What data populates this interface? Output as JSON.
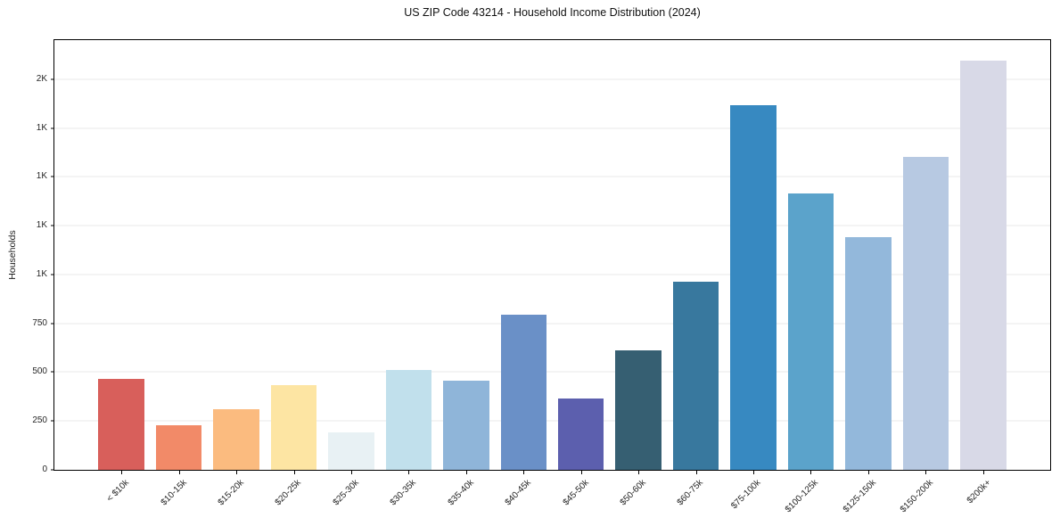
{
  "header": {
    "title": "US ZIP Code 43214 - Household Income Distribution (2024)"
  },
  "colors": {
    "background": "#ffffff",
    "axis_frame": "#000000",
    "gridline": "#e9e9e9",
    "tick_text": "#262626",
    "title_text": "#111111"
  },
  "chart_data": {
    "type": "bar",
    "title": "US ZIP Code 43214 - Household Income Distribution (2024)",
    "xlabel": "",
    "ylabel": "Households",
    "categories": [
      "< $10k",
      "$10-15k",
      "$15-20k",
      "$20-25k",
      "$25-30k",
      "$30-35k",
      "$35-40k",
      "$40-45k",
      "$45-50k",
      "$50-60k",
      "$60-75k",
      "$75-100k",
      "$100-125k",
      "$125-150k",
      "$150-200k",
      "$200k+"
    ],
    "values": [
      465,
      230,
      310,
      435,
      190,
      510,
      455,
      795,
      365,
      610,
      965,
      1865,
      1415,
      1190,
      1600,
      2095
    ],
    "bar_colors": [
      "#d85f5b",
      "#f28a68",
      "#fbbb7f",
      "#fde5a3",
      "#e8f1f4",
      "#c1e0ec",
      "#8fb5d9",
      "#6a90c7",
      "#5c5fae",
      "#365f72",
      "#38789e",
      "#3789c1",
      "#5ba3cb",
      "#93b8db",
      "#b7c9e2",
      "#d8d9e7"
    ],
    "ylim": [
      0,
      2200
    ],
    "yticks": [
      {
        "value": 0,
        "label": "0"
      },
      {
        "value": 250,
        "label": "250"
      },
      {
        "value": 500,
        "label": "500"
      },
      {
        "value": 750,
        "label": "750"
      },
      {
        "value": 1000,
        "label": "1K"
      },
      {
        "value": 1250,
        "label": "1K"
      },
      {
        "value": 1500,
        "label": "1K"
      },
      {
        "value": 1750,
        "label": "1K"
      },
      {
        "value": 2000,
        "label": "2K"
      }
    ],
    "grid": "horizontal",
    "legend_position": "none"
  }
}
